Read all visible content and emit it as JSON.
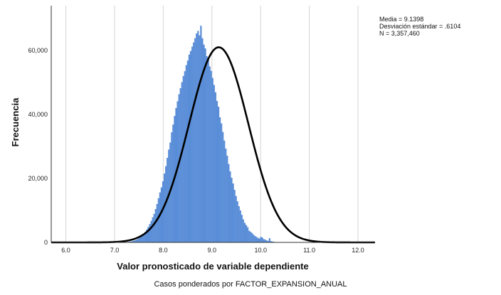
{
  "chart_data": {
    "type": "bar",
    "subtype": "histogram",
    "x_ticks": [
      "6.0",
      "7.0",
      "8.0",
      "9.0",
      "10.0",
      "11.0",
      "12.0"
    ],
    "x_tick_values": [
      6,
      7,
      8,
      9,
      10,
      11,
      12
    ],
    "y_ticks": [
      "0",
      "20,000",
      "40,000",
      "60,000"
    ],
    "y_tick_values": [
      0,
      20000,
      40000,
      60000
    ],
    "xlim": [
      5.7,
      12.35
    ],
    "ylim": [
      0,
      74000
    ],
    "xlabel": "Valor pronosticado de variable dependiente",
    "ylabel": "Frecuencia",
    "footnote": "Casos ponderados por FACTOR_EXPANSION_ANUAL",
    "stats": [
      "Media = 9.1398",
      "Desviación estándar = .6104",
      "N = 3,357,460"
    ],
    "mean": 9.1398,
    "std_dev": 0.6104,
    "n": 3357460,
    "bin_start": 7.2,
    "bin_width": 0.03,
    "values": [
      50,
      80,
      120,
      180,
      250,
      350,
      480,
      650,
      850,
      1100,
      1400,
      1800,
      2200,
      2700,
      3300,
      4000,
      4800,
      5700,
      6700,
      7800,
      8900,
      10400,
      12000,
      13800,
      15600,
      17200,
      19100,
      21500,
      23800,
      26400,
      29000,
      31200,
      34400,
      36800,
      39500,
      42000,
      44100,
      46300,
      48200,
      50100,
      52000,
      53500,
      55400,
      56800,
      58700,
      59800,
      61200,
      62500,
      63800,
      65300,
      66100,
      64700,
      67700,
      63800,
      61800,
      60600,
      58200,
      57400,
      55000,
      53600,
      51400,
      49200,
      46900,
      44200,
      42400,
      39100,
      37200,
      34500,
      31800,
      29300,
      27100,
      24500,
      22200,
      20200,
      18400,
      16400,
      14500,
      12800,
      11300,
      10000,
      8600,
      7200,
      6100,
      5400,
      4700,
      3600,
      3300,
      2900,
      2400,
      2000,
      1700,
      1400,
      1200,
      1700,
      1500,
      1000,
      850,
      600,
      450,
      1300,
      350,
      250,
      150,
      100
    ],
    "curve_peak": 61000,
    "bar_color": "#5b8fd8",
    "curve_color": "#000000",
    "grid": "vertical"
  }
}
